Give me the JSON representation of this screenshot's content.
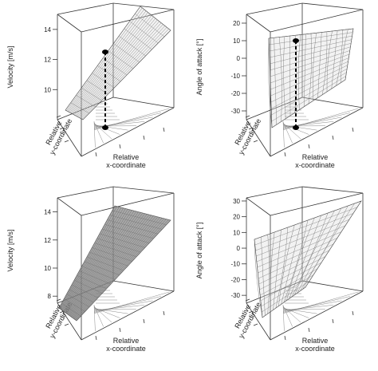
{
  "colors": {
    "frame": "#333333",
    "mesh": "#6b6b6b",
    "surface": "#8c8c8c",
    "marker": "#000000"
  },
  "chart_data": [
    {
      "type": "surface3d",
      "zlabel": "Velocity [m/s]",
      "xlabel": "Relative\nx-coordinate",
      "ylabel": "Relative\ny-coordinate",
      "zticks": [
        10,
        12,
        14
      ],
      "zlim": [
        8,
        15
      ],
      "surface_style": "mesh",
      "vertical_marker": {
        "z_top": 12.5,
        "z_bottom": "floor"
      }
    },
    {
      "type": "surface3d",
      "zlabel": "Angle of attack [°]",
      "xlabel": "Relative\nx-coordinate",
      "ylabel": "Relative\ny-coordinate",
      "zticks": [
        -30,
        -20,
        -10,
        0,
        10,
        20
      ],
      "zlim": [
        -35,
        25
      ],
      "surface_style": "mesh",
      "vertical_marker": {
        "z_top": 10,
        "z_bottom": "floor"
      }
    },
    {
      "type": "surface3d",
      "zlabel": "Velocity [m/s]",
      "xlabel": "Relative\nx-coordinate",
      "ylabel": "Relative\ny-coordinate",
      "zticks": [
        8,
        10,
        12,
        14
      ],
      "zlim": [
        7.5,
        15
      ],
      "surface_style": "shaded"
    },
    {
      "type": "surface3d",
      "zlabel": "Angle of attack [°]",
      "xlabel": "Relative\nx-coordinate",
      "ylabel": "Relative\ny-coordinate",
      "zticks": [
        -30,
        -20,
        -10,
        0,
        10,
        20,
        30
      ],
      "zlim": [
        -35,
        32
      ],
      "surface_style": "mesh"
    }
  ]
}
